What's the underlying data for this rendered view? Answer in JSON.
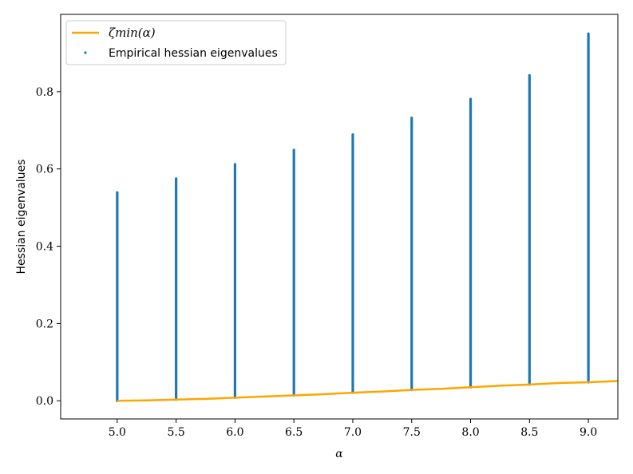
{
  "chart_data": {
    "type": "scatter",
    "xlabel": "α",
    "ylabel": "Hessian eigenvalues",
    "xlim": [
      4.52,
      9.25
    ],
    "ylim": [
      -0.047,
      1.0
    ],
    "x_ticks": [
      5.0,
      5.5,
      6.0,
      6.5,
      7.0,
      7.5,
      8.0,
      8.5,
      9.0
    ],
    "x_tick_labels": [
      "5.0",
      "5.5",
      "6.0",
      "6.5",
      "7.0",
      "7.5",
      "8.0",
      "8.5",
      "9.0"
    ],
    "y_ticks": [
      0.0,
      0.2,
      0.4,
      0.6,
      0.8
    ],
    "y_tick_labels": [
      "0.0",
      "0.2",
      "0.4",
      "0.6",
      "0.8"
    ],
    "grid": false,
    "legend_position": "top-left",
    "series": [
      {
        "name": "ζmin(α)",
        "kind": "line",
        "color": "#FFA500",
        "x": [
          5.0,
          5.25,
          5.5,
          5.75,
          6.0,
          6.25,
          6.5,
          6.75,
          7.0,
          7.25,
          7.5,
          7.75,
          8.0,
          8.25,
          8.5,
          8.75,
          9.0,
          9.25
        ],
        "y": [
          0.0,
          0.001,
          0.003,
          0.005,
          0.008,
          0.011,
          0.014,
          0.017,
          0.021,
          0.024,
          0.028,
          0.031,
          0.035,
          0.039,
          0.042,
          0.046,
          0.048,
          0.051
        ]
      },
      {
        "name": "Empirical hessian eigenvalues",
        "kind": "points",
        "color": "#1F77B4",
        "x": [
          5.0,
          5.5,
          6.0,
          6.5,
          7.0,
          7.5,
          8.0,
          8.5,
          9.0
        ],
        "ymin": [
          0.0,
          0.003,
          0.008,
          0.014,
          0.021,
          0.028,
          0.035,
          0.042,
          0.048
        ],
        "ymax": [
          0.539,
          0.575,
          0.612,
          0.649,
          0.689,
          0.732,
          0.781,
          0.842,
          0.95
        ]
      }
    ]
  }
}
